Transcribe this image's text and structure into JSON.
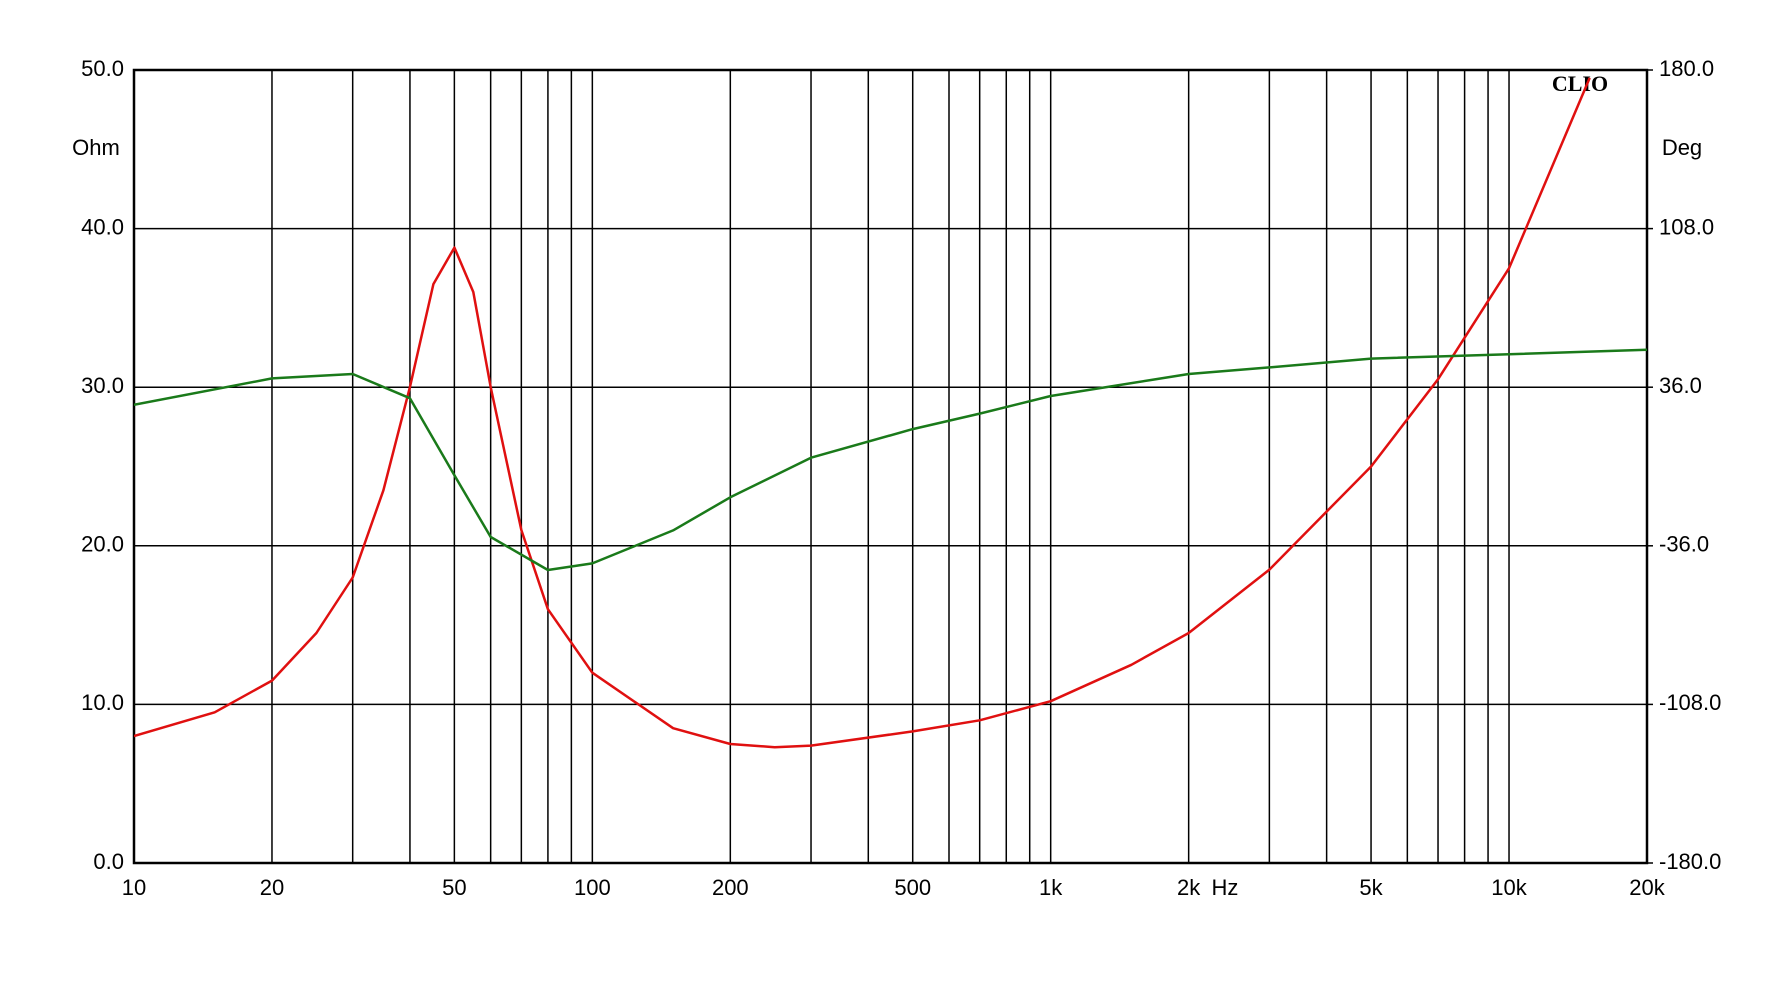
{
  "chart_data": {
    "type": "line",
    "logo": "CLIO",
    "y_label": "Ohm",
    "y2_label": "Deg",
    "x_label": "Hz",
    "xscale": "log",
    "grid": true,
    "xlim": [
      10,
      20000
    ],
    "xticks": [
      10,
      20,
      50,
      100,
      200,
      500,
      {
        "value": 1000,
        "label": "1k"
      },
      {
        "value": 2000,
        "label": "2k"
      },
      {
        "value": 5000,
        "label": "5k"
      },
      {
        "value": 10000,
        "label": "10k"
      },
      {
        "value": 20000,
        "label": "20k"
      }
    ],
    "x_minor_grid": [
      30,
      40,
      60,
      70,
      80,
      90,
      300,
      400,
      600,
      700,
      800,
      900,
      3000,
      4000,
      6000,
      7000,
      8000,
      9000
    ],
    "ylim": [
      0,
      50
    ],
    "yticks": [
      {
        "value": 0,
        "label": "0.0"
      },
      {
        "value": 10,
        "label": "10.0"
      },
      {
        "value": 20,
        "label": "20.0"
      },
      {
        "value": 30,
        "label": "30.0"
      },
      {
        "value": 40,
        "label": "40.0"
      },
      {
        "value": 50,
        "label": "50.0"
      }
    ],
    "y2lim": [
      -180,
      180
    ],
    "y2ticks": [
      {
        "value": -180,
        "label": "-180.0"
      },
      {
        "value": -108,
        "label": "-108.0"
      },
      {
        "value": -36,
        "label": "-36.0"
      },
      {
        "value": 36,
        "label": "36.0"
      },
      {
        "value": 108,
        "label": "108.0"
      },
      {
        "value": 180,
        "label": "180.0"
      }
    ],
    "series": [
      {
        "color": "#e01010",
        "axis": "y",
        "x": [
          10,
          15,
          20,
          25,
          30,
          35,
          40,
          45,
          50,
          55,
          60,
          70,
          80,
          100,
          150,
          200,
          250,
          300,
          500,
          700,
          1000,
          1500,
          2000,
          3000,
          5000,
          7000,
          10000,
          15000
        ],
        "values": [
          8.0,
          9.5,
          11.5,
          14.5,
          18,
          23.5,
          30,
          36.5,
          38.8,
          36,
          30,
          21,
          16,
          12,
          8.5,
          7.5,
          7.3,
          7.4,
          8.3,
          9.0,
          10.2,
          12.5,
          14.5,
          18.5,
          25,
          30.5,
          37.5,
          49.5
        ]
      },
      {
        "color": "#1a7a1a",
        "axis": "y2",
        "x": [
          10,
          20,
          30,
          40,
          50,
          60,
          80,
          100,
          150,
          200,
          300,
          500,
          700,
          1000,
          2000,
          3000,
          5000,
          10000,
          20000
        ],
        "values": [
          28,
          40,
          42,
          31,
          -4,
          -32,
          -47,
          -44,
          -29,
          -14,
          4,
          17,
          24,
          32,
          42,
          45,
          49,
          51,
          53
        ]
      }
    ]
  }
}
